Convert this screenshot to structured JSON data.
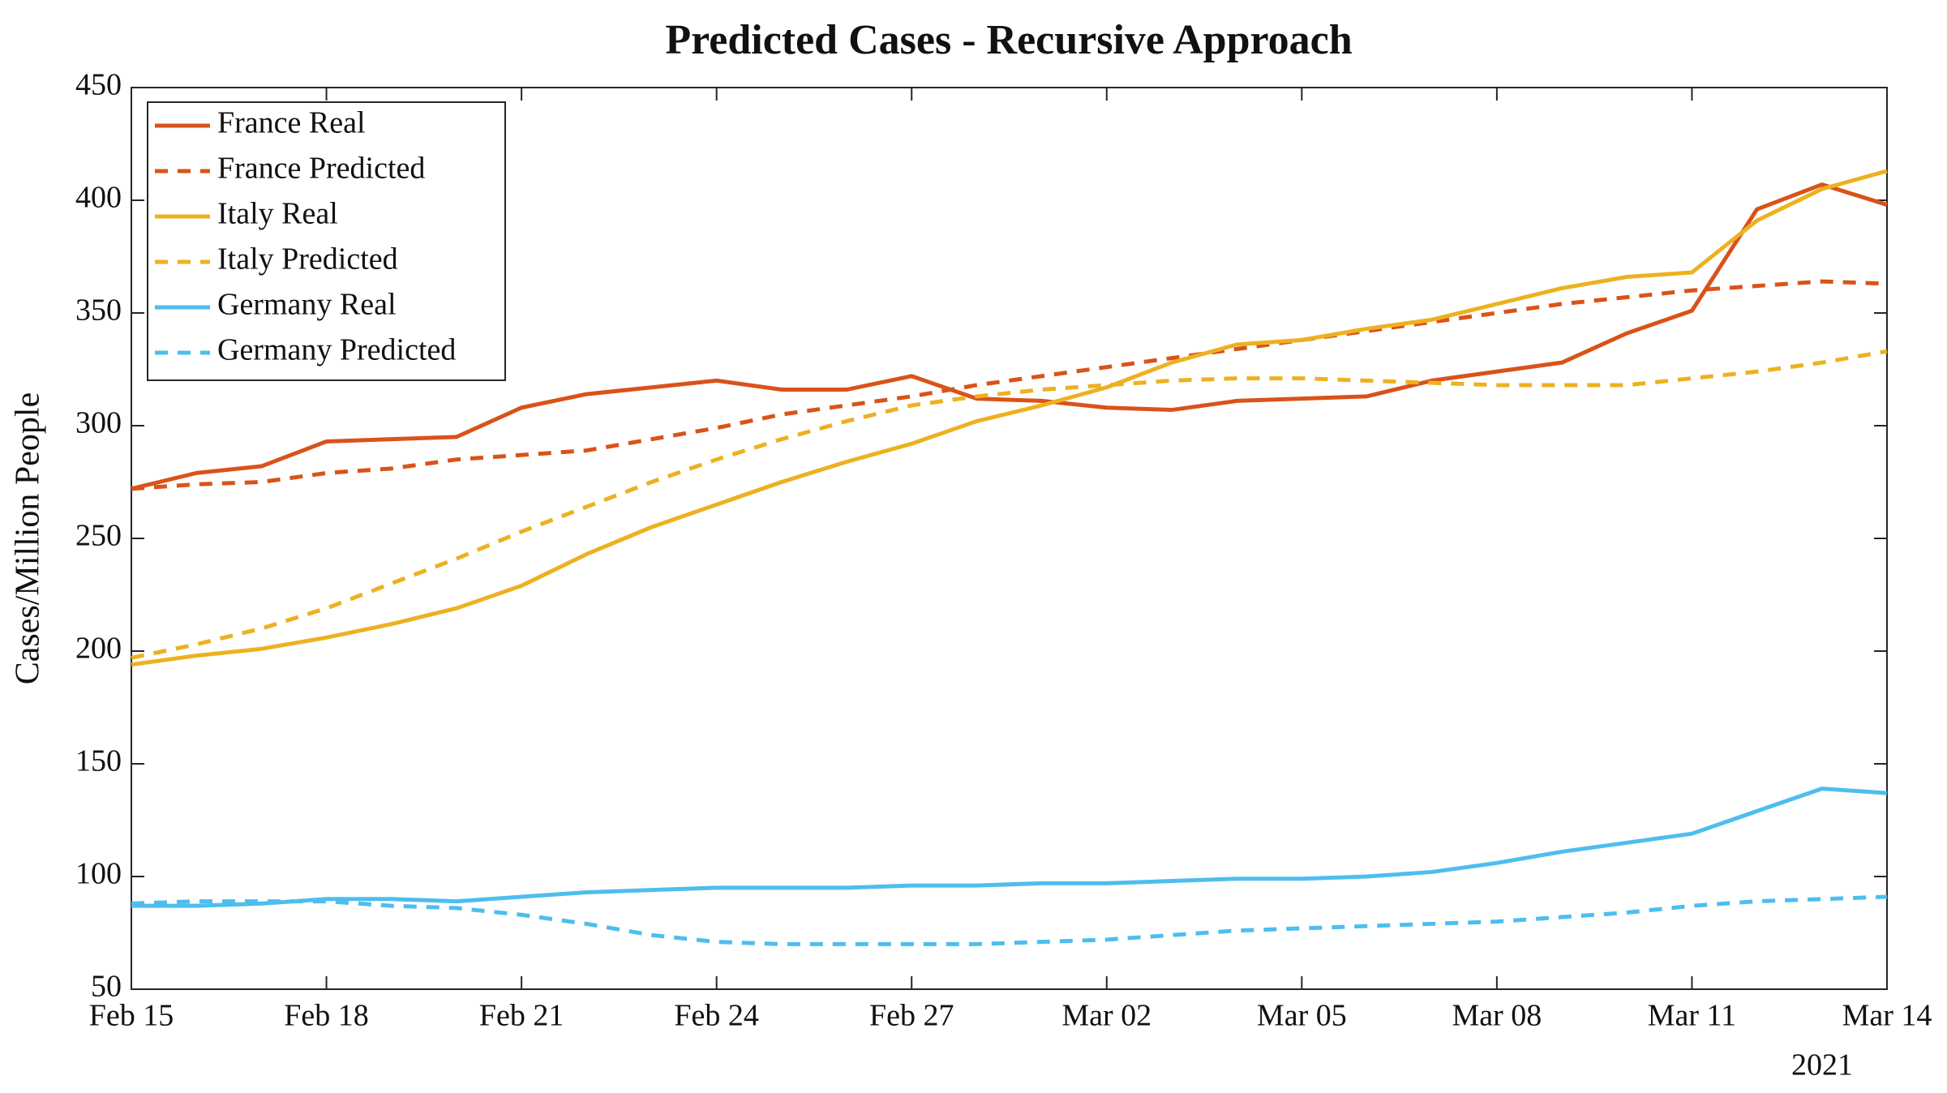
{
  "chart_data": {
    "type": "line",
    "title": "Predicted Cases - Recursive Approach",
    "ylabel": "Cases/Million People",
    "year_label": "2021",
    "x": [
      "2021-02-15",
      "2021-02-16",
      "2021-02-17",
      "2021-02-18",
      "2021-02-19",
      "2021-02-20",
      "2021-02-21",
      "2021-02-22",
      "2021-02-23",
      "2021-02-24",
      "2021-02-25",
      "2021-02-26",
      "2021-02-27",
      "2021-02-28",
      "2021-03-01",
      "2021-03-02",
      "2021-03-03",
      "2021-03-04",
      "2021-03-05",
      "2021-03-06",
      "2021-03-07",
      "2021-03-08",
      "2021-03-09",
      "2021-03-10",
      "2021-03-11",
      "2021-03-12",
      "2021-03-13",
      "2021-03-14"
    ],
    "xlim": [
      "2021-02-15",
      "2021-03-14"
    ],
    "xticks": [
      {
        "value": "2021-02-15",
        "label": "Feb 15"
      },
      {
        "value": "2021-02-18",
        "label": "Feb 18"
      },
      {
        "value": "2021-02-21",
        "label": "Feb 21"
      },
      {
        "value": "2021-02-24",
        "label": "Feb 24"
      },
      {
        "value": "2021-02-27",
        "label": "Feb 27"
      },
      {
        "value": "2021-03-02",
        "label": "Mar 02"
      },
      {
        "value": "2021-03-05",
        "label": "Mar 05"
      },
      {
        "value": "2021-03-08",
        "label": "Mar 08"
      },
      {
        "value": "2021-03-11",
        "label": "Mar 11"
      },
      {
        "value": "2021-03-14",
        "label": "Mar 14"
      }
    ],
    "ylim": [
      50,
      450
    ],
    "yticks": [
      50,
      100,
      150,
      200,
      250,
      300,
      350,
      400,
      450
    ],
    "grid": false,
    "legend": "northwest",
    "series": [
      {
        "name": "France Real",
        "color": "#d95319",
        "line_style": "solid",
        "values": [
          272,
          279,
          282,
          293,
          294,
          295,
          308,
          314,
          317,
          320,
          316,
          316,
          322,
          312,
          311,
          308,
          307,
          311,
          312,
          313,
          320,
          324,
          328,
          341,
          351,
          396,
          407,
          398
        ]
      },
      {
        "name": "France Predicted",
        "color": "#d95319",
        "line_style": "dashed",
        "values": [
          272,
          274,
          275,
          279,
          281,
          285,
          287,
          289,
          294,
          299,
          305,
          309,
          313,
          318,
          322,
          326,
          330,
          334,
          338,
          342,
          346,
          350,
          354,
          357,
          360,
          362,
          364,
          363
        ]
      },
      {
        "name": "Italy Real",
        "color": "#edb120",
        "line_style": "solid",
        "values": [
          194,
          198,
          201,
          206,
          212,
          219,
          229,
          243,
          255,
          265,
          275,
          284,
          292,
          302,
          309,
          317,
          328,
          336,
          338,
          343,
          347,
          354,
          361,
          366,
          368,
          391,
          405,
          413
        ]
      },
      {
        "name": "Italy Predicted",
        "color": "#edb120",
        "line_style": "dashed",
        "values": [
          197,
          203,
          210,
          219,
          230,
          241,
          253,
          264,
          275,
          285,
          294,
          302,
          309,
          313,
          316,
          318,
          320,
          321,
          321,
          320,
          319,
          318,
          318,
          318,
          321,
          324,
          328,
          333
        ]
      },
      {
        "name": "Germany Real",
        "color": "#4dbeee",
        "line_style": "solid",
        "values": [
          87,
          87,
          88,
          90,
          90,
          89,
          91,
          93,
          94,
          95,
          95,
          95,
          96,
          96,
          97,
          97,
          98,
          99,
          99,
          100,
          102,
          106,
          111,
          115,
          119,
          129,
          139,
          137
        ]
      },
      {
        "name": "Germany Predicted",
        "color": "#4dbeee",
        "line_style": "dashed",
        "values": [
          88,
          89,
          89,
          89,
          87,
          86,
          83,
          79,
          74,
          71,
          70,
          70,
          70,
          70,
          71,
          72,
          74,
          76,
          77,
          78,
          79,
          80,
          82,
          84,
          87,
          89,
          90,
          91
        ]
      }
    ]
  }
}
